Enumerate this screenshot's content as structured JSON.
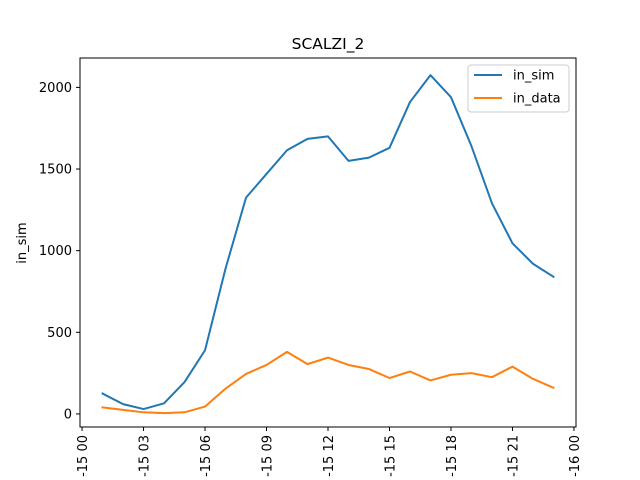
{
  "chart_data": {
    "type": "line",
    "title": "SCALZI_2",
    "xlabel": "",
    "ylabel": "in_sim",
    "x": [
      "01:00",
      "02:00",
      "03:00",
      "04:00",
      "05:00",
      "06:00",
      "07:00",
      "08:00",
      "09:00",
      "10:00",
      "11:00",
      "12:00",
      "13:00",
      "14:00",
      "15:00",
      "16:00",
      "17:00",
      "18:00",
      "19:00",
      "20:00",
      "21:00",
      "22:00",
      "23:00"
    ],
    "x_unit_hours": [
      1,
      2,
      3,
      4,
      5,
      6,
      7,
      8,
      9,
      10,
      11,
      12,
      13,
      14,
      15,
      16,
      17,
      18,
      19,
      20,
      21,
      22,
      23
    ],
    "xlim_hours": [
      -0.1,
      24.1
    ],
    "x_ticks": {
      "hours": [
        0,
        3,
        6,
        9,
        12,
        15,
        18,
        21,
        24
      ],
      "labels": [
        "-15 00",
        "-15 03",
        "-15 06",
        "-15 09",
        "-15 12",
        "-15 15",
        "-15 18",
        "-15 21",
        "-16 00"
      ]
    },
    "y_ticks": [
      0,
      500,
      1000,
      1500,
      2000
    ],
    "ylim": [
      -80,
      2180
    ],
    "series": [
      {
        "name": "in_sim",
        "color": "#1f77b4",
        "values": [
          125,
          60,
          30,
          65,
          195,
          390,
          890,
          1325,
          1470,
          1615,
          1685,
          1700,
          1550,
          1570,
          1630,
          1910,
          2075,
          1940,
          1640,
          1290,
          1045,
          920,
          840
        ]
      },
      {
        "name": "in_data",
        "color": "#ff7f0e",
        "values": [
          40,
          25,
          10,
          5,
          10,
          45,
          155,
          245,
          300,
          380,
          305,
          345,
          300,
          275,
          220,
          260,
          205,
          240,
          250,
          225,
          290,
          215,
          160
        ]
      }
    ],
    "legend": "top-right",
    "grid": false
  }
}
